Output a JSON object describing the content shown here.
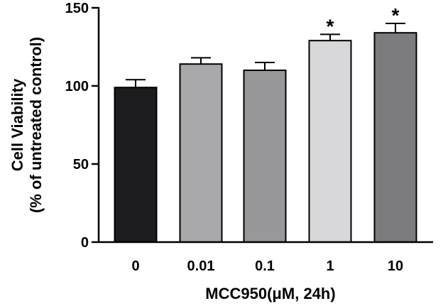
{
  "chart_data": {
    "type": "bar",
    "title": "",
    "xlabel": "MCC950(μM, 24h)",
    "ylabel_lines": [
      "Cell Viability",
      "(% of untreated control)"
    ],
    "categories": [
      "0",
      "0.01",
      "0.1",
      "1",
      "10"
    ],
    "values": [
      99,
      114,
      110,
      129,
      134
    ],
    "error_upper": [
      5,
      4,
      5,
      4,
      6
    ],
    "significance": [
      "",
      "",
      "",
      "*",
      "*"
    ],
    "bar_colors": [
      "#1d1d1f",
      "#a9a9ab",
      "#98989a",
      "#d8d8da",
      "#7c7c7e"
    ],
    "ylim": [
      0,
      150
    ],
    "yticks": [
      0,
      50,
      100,
      150
    ],
    "grid": false,
    "legend": "none"
  }
}
